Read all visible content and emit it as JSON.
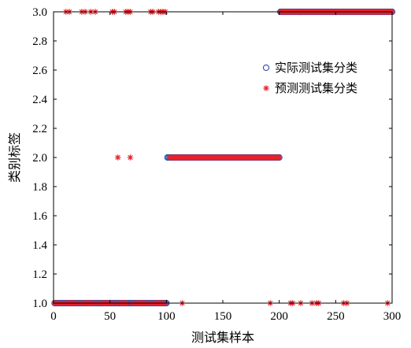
{
  "chart_data": {
    "type": "scatter",
    "title": "",
    "xlabel": "测试集样本",
    "ylabel": "类别标签",
    "xlim": [
      0,
      300
    ],
    "ylim": [
      1.0,
      3.0
    ],
    "xticks": [
      0,
      50,
      100,
      150,
      200,
      250,
      300
    ],
    "yticks": [
      1.0,
      1.2,
      1.4,
      1.6,
      1.8,
      2.0,
      2.2,
      2.4,
      2.6,
      2.8,
      3.0
    ],
    "xtick_labels": [
      "0",
      "50",
      "100",
      "150",
      "200",
      "250",
      "300"
    ],
    "ytick_labels": [
      "1.0",
      "1.2",
      "1.4",
      "1.6",
      "1.8",
      "2.0",
      "2.2",
      "2.4",
      "2.6",
      "2.8",
      "3.0"
    ],
    "grid": false,
    "legend_position": "upper-right",
    "series": [
      {
        "name": "实际测试集分类",
        "marker": "circle",
        "color": "#2e4fa8",
        "segments": [
          {
            "x_from": 1,
            "x_to": 100,
            "y": 1
          },
          {
            "x_from": 101,
            "x_to": 200,
            "y": 2
          },
          {
            "x_from": 201,
            "x_to": 300,
            "y": 3
          }
        ]
      },
      {
        "name": "预测测试集分类",
        "marker": "star",
        "color": "#e8212b",
        "segments": [
          {
            "x_from": 103,
            "x_to": 200,
            "y": 2
          },
          {
            "x_from": 201,
            "x_to": 300,
            "y": 3
          }
        ],
        "points": [
          {
            "x": 1,
            "y": 1
          },
          {
            "x": 3,
            "y": 1
          },
          {
            "x": 5,
            "y": 1
          },
          {
            "x": 7,
            "y": 1
          },
          {
            "x": 9,
            "y": 1
          },
          {
            "x": 11,
            "y": 1
          },
          {
            "x": 13,
            "y": 1
          },
          {
            "x": 15,
            "y": 1
          },
          {
            "x": 17,
            "y": 1
          },
          {
            "x": 19,
            "y": 1
          },
          {
            "x": 21,
            "y": 1
          },
          {
            "x": 23,
            "y": 1
          },
          {
            "x": 25,
            "y": 1
          },
          {
            "x": 27,
            "y": 1
          },
          {
            "x": 29,
            "y": 1
          },
          {
            "x": 31,
            "y": 1
          },
          {
            "x": 33,
            "y": 1
          },
          {
            "x": 35,
            "y": 1
          },
          {
            "x": 37,
            "y": 1
          },
          {
            "x": 39,
            "y": 1
          },
          {
            "x": 41,
            "y": 1
          },
          {
            "x": 43,
            "y": 1
          },
          {
            "x": 45,
            "y": 1
          },
          {
            "x": 47,
            "y": 1
          },
          {
            "x": 49,
            "y": 1
          },
          {
            "x": 51,
            "y": 1
          },
          {
            "x": 53,
            "y": 1
          },
          {
            "x": 56,
            "y": 1
          },
          {
            "x": 59,
            "y": 1
          },
          {
            "x": 61,
            "y": 1
          },
          {
            "x": 63,
            "y": 1
          },
          {
            "x": 65,
            "y": 1
          },
          {
            "x": 69,
            "y": 1
          },
          {
            "x": 71,
            "y": 1
          },
          {
            "x": 73,
            "y": 1
          },
          {
            "x": 75,
            "y": 1
          },
          {
            "x": 77,
            "y": 1
          },
          {
            "x": 79,
            "y": 1
          },
          {
            "x": 81,
            "y": 1
          },
          {
            "x": 83,
            "y": 1
          },
          {
            "x": 85,
            "y": 1
          },
          {
            "x": 87,
            "y": 1
          },
          {
            "x": 89,
            "y": 1
          },
          {
            "x": 91,
            "y": 1
          },
          {
            "x": 93,
            "y": 1
          },
          {
            "x": 95,
            "y": 1
          },
          {
            "x": 97,
            "y": 1
          },
          {
            "x": 99,
            "y": 1
          },
          {
            "x": 11,
            "y": 3
          },
          {
            "x": 14,
            "y": 3
          },
          {
            "x": 25,
            "y": 3
          },
          {
            "x": 28,
            "y": 3
          },
          {
            "x": 33,
            "y": 3
          },
          {
            "x": 37,
            "y": 3
          },
          {
            "x": 52,
            "y": 3
          },
          {
            "x": 54,
            "y": 3
          },
          {
            "x": 64,
            "y": 3
          },
          {
            "x": 66,
            "y": 3
          },
          {
            "x": 68,
            "y": 3
          },
          {
            "x": 86,
            "y": 3
          },
          {
            "x": 88,
            "y": 3
          },
          {
            "x": 93,
            "y": 3
          },
          {
            "x": 95,
            "y": 3
          },
          {
            "x": 97,
            "y": 3
          },
          {
            "x": 99,
            "y": 3
          },
          {
            "x": 57,
            "y": 2
          },
          {
            "x": 68,
            "y": 2
          },
          {
            "x": 114,
            "y": 1
          },
          {
            "x": 192,
            "y": 1
          },
          {
            "x": 210,
            "y": 1
          },
          {
            "x": 212,
            "y": 1
          },
          {
            "x": 219,
            "y": 1
          },
          {
            "x": 229,
            "y": 1
          },
          {
            "x": 233,
            "y": 1
          },
          {
            "x": 235,
            "y": 1
          },
          {
            "x": 257,
            "y": 1
          },
          {
            "x": 260,
            "y": 1
          },
          {
            "x": 296,
            "y": 1
          }
        ]
      }
    ]
  }
}
